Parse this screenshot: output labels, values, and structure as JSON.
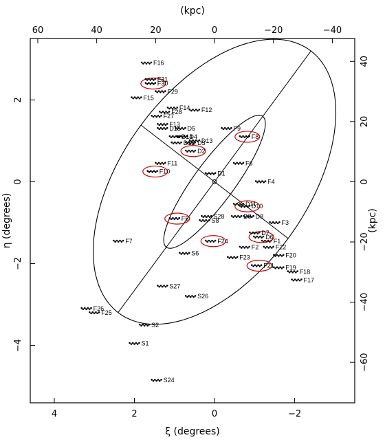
{
  "chart_data": {
    "type": "scatter",
    "xlabel_bottom": "ξ (degrees)",
    "xlabel_top": "(kpc)",
    "ylabel_left": "η (degrees)",
    "ylabel_right": "(kpc)",
    "xlim": [
      4.6,
      -3.5
    ],
    "ylim": [
      -5.4,
      3.5
    ],
    "x_ticks_bottom": [
      {
        "v": 4,
        "label": "4"
      },
      {
        "v": 2,
        "label": "2"
      },
      {
        "v": 0,
        "label": "0"
      },
      {
        "v": -2,
        "label": "−2"
      }
    ],
    "y_ticks_left": [
      {
        "v": 2,
        "label": "2"
      },
      {
        "v": 0,
        "label": "0"
      },
      {
        "v": -2,
        "label": "−2"
      },
      {
        "v": -4,
        "label": "−4"
      }
    ],
    "x_ticks_top": [
      {
        "v": 60,
        "label": "60"
      },
      {
        "v": 40,
        "label": "40"
      },
      {
        "v": 20,
        "label": "20"
      },
      {
        "v": 0,
        "label": "0"
      },
      {
        "v": -20,
        "label": "−20"
      },
      {
        "v": -40,
        "label": "−40"
      }
    ],
    "y_ticks_right": [
      {
        "v": 40,
        "label": "40"
      },
      {
        "v": 20,
        "label": "20"
      },
      {
        "v": 0,
        "label": "0"
      },
      {
        "v": -20,
        "label": "−20"
      },
      {
        "v": -40,
        "label": "−40"
      },
      {
        "v": -60,
        "label": "−60"
      }
    ],
    "kpc_per_degree": 13.6,
    "center": [
      0,
      0
    ],
    "outer_ellipse": {
      "semi_major_deg": 4.0,
      "semi_minor_deg": 2.3,
      "major_axis_angle_deg": 127
    },
    "inner_ellipse": {
      "semi_major_deg": 2.0,
      "semi_minor_deg": 0.5,
      "major_axis_angle_deg": 127
    },
    "fields": [
      {
        "name": "F1",
        "x": -1.3,
        "y": -1.45
      },
      {
        "name": "F2",
        "x": -0.75,
        "y": -1.6
      },
      {
        "name": "F3",
        "x": -1.5,
        "y": -1.0
      },
      {
        "name": "F4",
        "x": -1.15,
        "y": -0.0
      },
      {
        "name": "F5",
        "x": 1.0,
        "y": -0.9
      },
      {
        "name": "F6",
        "x": -0.6,
        "y": 0.45
      },
      {
        "name": "F7",
        "x": 2.4,
        "y": -1.45
      },
      {
        "name": "F8",
        "x": -0.75,
        "y": 1.1
      },
      {
        "name": "F9",
        "x": -0.3,
        "y": 1.3
      },
      {
        "name": "F10",
        "x": 1.55,
        "y": 0.25
      },
      {
        "name": "F11",
        "x": 1.35,
        "y": 0.45
      },
      {
        "name": "F12",
        "x": 0.5,
        "y": 1.75
      },
      {
        "name": "F13",
        "x": 1.3,
        "y": 1.4
      },
      {
        "name": "F14",
        "x": 1.05,
        "y": 1.8
      },
      {
        "name": "F15",
        "x": 1.95,
        "y": 2.05
      },
      {
        "name": "F16",
        "x": 1.7,
        "y": 2.9
      },
      {
        "name": "F17",
        "x": -2.05,
        "y": -2.4
      },
      {
        "name": "F18",
        "x": -1.95,
        "y": -2.2
      },
      {
        "name": "F19",
        "x": -1.6,
        "y": -2.1
      },
      {
        "name": "F20",
        "x": -1.6,
        "y": -1.8
      },
      {
        "name": "F21",
        "x": -1.05,
        "y": -2.05
      },
      {
        "name": "F22",
        "x": -1.35,
        "y": -1.6
      },
      {
        "name": "F23",
        "x": -0.45,
        "y": -1.85
      },
      {
        "name": "F24",
        "x": 0.1,
        "y": -1.45
      },
      {
        "name": "F25",
        "x": 3.0,
        "y": -3.2
      },
      {
        "name": "F26",
        "x": 3.2,
        "y": -3.1
      },
      {
        "name": "F27",
        "x": 1.45,
        "y": 1.6
      },
      {
        "name": "F28",
        "x": 1.25,
        "y": 1.7
      },
      {
        "name": "F29",
        "x": 1.35,
        "y": 2.2
      },
      {
        "name": "F30",
        "x": 1.6,
        "y": 2.4
      },
      {
        "name": "F31",
        "x": 1.6,
        "y": 2.5
      },
      {
        "name": "D1",
        "x": 0.1,
        "y": 0.2
      },
      {
        "name": "D2",
        "x": 0.6,
        "y": 0.75
      },
      {
        "name": "D3",
        "x": 0.6,
        "y": 0.95
      },
      {
        "name": "D4",
        "x": 0.8,
        "y": 1.1
      },
      {
        "name": "D5",
        "x": 0.85,
        "y": 1.3
      },
      {
        "name": "D6",
        "x": -1.1,
        "y": -1.35
      },
      {
        "name": "D7",
        "x": -1.0,
        "y": -1.25
      },
      {
        "name": "D8",
        "x": -0.85,
        "y": -0.85
      },
      {
        "name": "D9",
        "x": -0.55,
        "y": -0.85
      },
      {
        "name": "D10",
        "x": -0.75,
        "y": -0.6
      },
      {
        "name": "D11",
        "x": -0.6,
        "y": -0.55
      },
      {
        "name": "D12",
        "x": 0.95,
        "y": 0.95
      },
      {
        "name": "D13",
        "x": 0.5,
        "y": 1.0
      },
      {
        "name": "D14",
        "x": 1.0,
        "y": 1.1
      },
      {
        "name": "D15",
        "x": 1.3,
        "y": 1.3
      },
      {
        "name": "S1",
        "x": 2.0,
        "y": -3.95
      },
      {
        "name": "S2",
        "x": 1.75,
        "y": -3.5
      },
      {
        "name": "S6",
        "x": 0.75,
        "y": -1.75
      },
      {
        "name": "S8",
        "x": 0.25,
        "y": -0.95
      },
      {
        "name": "S24",
        "x": 1.45,
        "y": -4.85
      },
      {
        "name": "S26",
        "x": 0.6,
        "y": -2.8
      },
      {
        "name": "S27",
        "x": 1.3,
        "y": -2.55
      },
      {
        "name": "S28",
        "x": 0.2,
        "y": -0.85
      }
    ],
    "highlighted_fields": [
      "F30",
      "F10",
      "D2",
      "F8",
      "F5",
      "D10",
      "F24",
      "D6",
      "F21"
    ]
  }
}
